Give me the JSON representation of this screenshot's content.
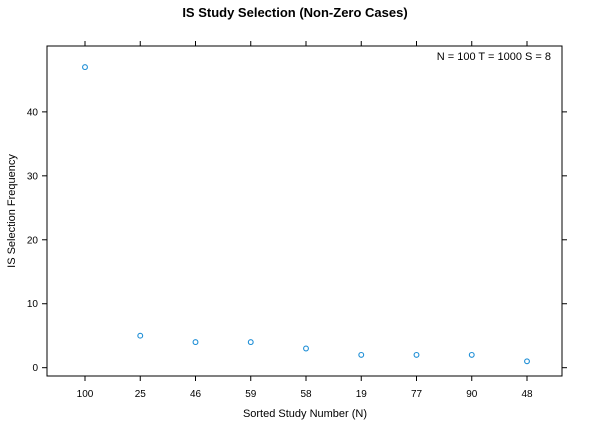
{
  "chart_data": {
    "type": "scatter",
    "title": "IS Study Selection (Non-Zero Cases)",
    "xlabel": "Sorted Study Number (N)",
    "ylabel": "IS Selection Frequency",
    "annotation": "N = 100  T = 1000  S = 8",
    "categories": [
      "100",
      "25",
      "46",
      "59",
      "58",
      "19",
      "77",
      "90",
      "48"
    ],
    "values": [
      47,
      5,
      4,
      4,
      3,
      2,
      2,
      2,
      1
    ],
    "yticks": [
      0,
      10,
      20,
      30,
      40
    ],
    "ylim": [
      -1.3,
      50.3
    ],
    "grid": false,
    "point_color": "#1f8fd6"
  }
}
